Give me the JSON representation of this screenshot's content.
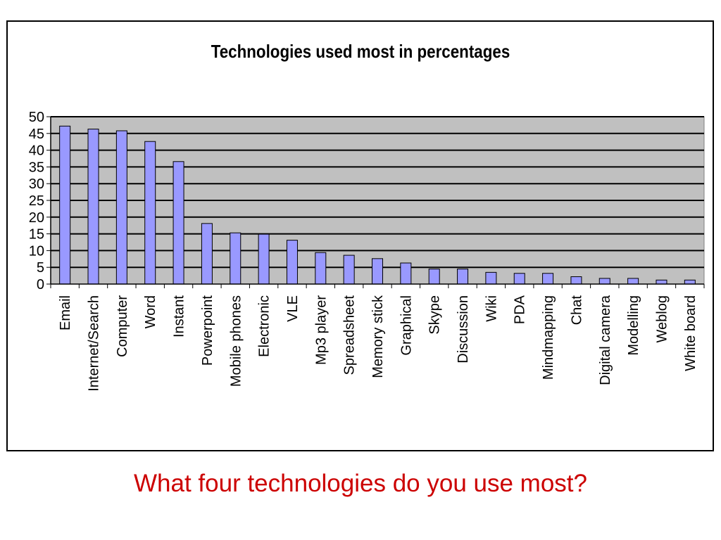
{
  "slide": {
    "question": "What four technologies do you use most?"
  },
  "chart_data": {
    "type": "bar",
    "title": "Technologies used most in percentages",
    "xlabel": "",
    "ylabel": "",
    "ylim": [
      0,
      50
    ],
    "yticks": [
      0,
      5,
      10,
      15,
      20,
      25,
      30,
      35,
      40,
      45,
      50
    ],
    "grid": true,
    "legend": "none",
    "colors": {
      "bar": "#9999ff",
      "plot_bg": "#c0c0c0",
      "gridline": "#000000"
    },
    "categories": [
      "Email",
      "Internet/Search",
      "Computer",
      "Word",
      "Instant",
      "Powerpoint",
      "Mobile phones",
      "Electronic",
      "VLE",
      "Mp3 player",
      "Spreadsheet",
      "Memory stick",
      "Graphical",
      "Skype",
      "Discussion",
      "Wiki",
      "PDA",
      "Mindmapping",
      "Chat",
      "Digital camera",
      "Modelling",
      "Weblog",
      "White board"
    ],
    "values": [
      47.2,
      46.3,
      45.8,
      42.6,
      36.6,
      18.1,
      15.3,
      14.9,
      13.1,
      9.4,
      8.6,
      7.6,
      6.3,
      4.5,
      4.5,
      3.5,
      3.2,
      3.2,
      2.2,
      1.7,
      1.7,
      1.2,
      1.2
    ]
  }
}
